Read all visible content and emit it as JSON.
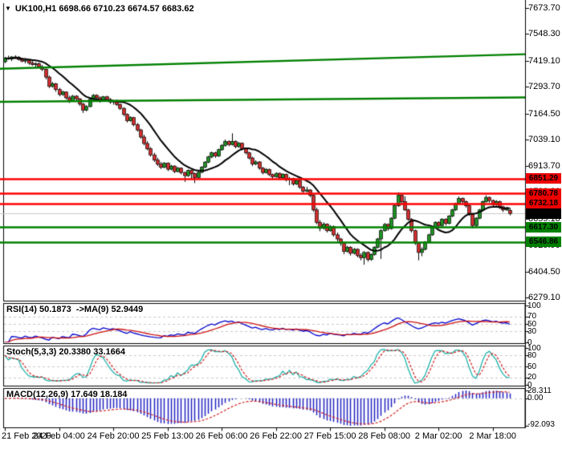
{
  "header": {
    "symbol": "UK100,H1",
    "quote": "6698.66 6710.23 6674.57 6683.62"
  },
  "colors": {
    "bull": "#1F9324",
    "bear": "#D22E2E",
    "wick": "#000000",
    "ma": "#000000",
    "resistance": "#FF0000",
    "support": "#008000",
    "trendline": "#008000",
    "current_price_line": "#C8C8C8",
    "grid": "#C8C8C8",
    "rsi_line": "#0000CC",
    "rsi_ma_line": "#CC1111",
    "stoch_k": "#20B2AA",
    "stoch_d": "#D02020",
    "macd_hist": "#2020C0",
    "macd_signal": "#D02020",
    "badge_red": "#EE0000",
    "badge_green": "#008000",
    "badge_black": "#000000"
  },
  "chart_data": {
    "type": "candlestick",
    "symbol": "UK100",
    "timeframe": "H1",
    "title": "UK100,H1 6698.66 6710.23 6674.57 6683.62",
    "current_bar": {
      "open": 6698.66,
      "high": 6710.23,
      "low": 6674.57,
      "close": 6683.62
    },
    "price_axis_ticks": [
      7673.7,
      7548.3,
      7419.1,
      7293.7,
      7164.5,
      7039.1,
      6913.7,
      6788.3,
      6659.1,
      6529.9,
      6404.5,
      6279.1
    ],
    "time_axis_labels": [
      "21 Feb 2020",
      "24 Feb 04:00",
      "24 Feb 20:00",
      "25 Feb 13:00",
      "26 Feb 06:00",
      "26 Feb 22:00",
      "27 Feb 15:00",
      "28 Feb 08:00",
      "2 Mar 02:00",
      "2 Mar 18:00"
    ],
    "levels": {
      "resistance": [
        6851.29,
        6780.78,
        6732.18
      ],
      "support": [
        6617.3,
        6546.86
      ],
      "current_price": 6683.62
    },
    "trendlines": [
      {
        "price_left": 7381,
        "price_right": 7451
      },
      {
        "price_left": 7222,
        "price_right": 7243
      }
    ],
    "candles": [
      [
        7415,
        7438,
        7408,
        7432
      ],
      [
        7432,
        7444,
        7424,
        7428
      ],
      [
        7428,
        7441,
        7418,
        7438
      ],
      [
        7438,
        7446,
        7430,
        7436
      ],
      [
        7436,
        7442,
        7421,
        7426
      ],
      [
        7426,
        7434,
        7412,
        7418
      ],
      [
        7418,
        7429,
        7407,
        7422
      ],
      [
        7422,
        7428,
        7400,
        7408
      ],
      [
        7408,
        7420,
        7396,
        7401
      ],
      [
        7401,
        7412,
        7388,
        7405
      ],
      [
        7405,
        7411,
        7385,
        7391
      ],
      [
        7391,
        7399,
        7370,
        7378
      ],
      [
        7378,
        7382,
        7330,
        7341
      ],
      [
        7341,
        7348,
        7288,
        7296
      ],
      [
        7296,
        7318,
        7290,
        7309
      ],
      [
        7309,
        7313,
        7270,
        7281
      ],
      [
        7281,
        7289,
        7248,
        7257
      ],
      [
        7257,
        7275,
        7250,
        7269
      ],
      [
        7269,
        7272,
        7233,
        7241
      ],
      [
        7241,
        7251,
        7216,
        7226
      ],
      [
        7226,
        7255,
        7222,
        7249
      ],
      [
        7249,
        7254,
        7228,
        7236
      ],
      [
        7236,
        7240,
        7202,
        7211
      ],
      [
        7211,
        7216,
        7168,
        7182
      ],
      [
        7182,
        7206,
        7176,
        7199
      ],
      [
        7199,
        7240,
        7195,
        7234
      ],
      [
        7234,
        7259,
        7230,
        7253
      ],
      [
        7253,
        7258,
        7232,
        7241
      ],
      [
        7241,
        7248,
        7218,
        7227
      ],
      [
        7227,
        7250,
        7222,
        7246
      ],
      [
        7246,
        7251,
        7226,
        7233
      ],
      [
        7233,
        7240,
        7212,
        7221
      ],
      [
        7221,
        7232,
        7208,
        7228
      ],
      [
        7228,
        7233,
        7202,
        7209
      ],
      [
        7209,
        7215,
        7182,
        7190
      ],
      [
        7190,
        7196,
        7152,
        7161
      ],
      [
        7161,
        7166,
        7122,
        7131
      ],
      [
        7131,
        7152,
        7126,
        7146
      ],
      [
        7146,
        7149,
        7104,
        7112
      ],
      [
        7112,
        7120,
        7078,
        7086
      ],
      [
        7086,
        7092,
        7044,
        7052
      ],
      [
        7052,
        7063,
        7012,
        7021
      ],
      [
        7021,
        7032,
        6988,
        6996
      ],
      [
        6996,
        7004,
        6958,
        6966
      ],
      [
        6966,
        6976,
        6932,
        6941
      ],
      [
        6941,
        6952,
        6912,
        6921
      ],
      [
        6921,
        6932,
        6898,
        6906
      ],
      [
        6906,
        6931,
        6902,
        6926
      ],
      [
        6926,
        6930,
        6888,
        6897
      ],
      [
        6897,
        6918,
        6892,
        6912
      ],
      [
        6912,
        6916,
        6878,
        6886
      ],
      [
        6886,
        6908,
        6882,
        6902
      ],
      [
        6902,
        6906,
        6872,
        6881
      ],
      [
        6881,
        6886,
        6836,
        6866
      ],
      [
        6866,
        6896,
        6860,
        6891
      ],
      [
        6891,
        6895,
        6848,
        6876
      ],
      [
        6876,
        6881,
        6830,
        6857
      ],
      [
        6857,
        6889,
        6852,
        6882
      ],
      [
        6882,
        6912,
        6878,
        6907
      ],
      [
        6907,
        6936,
        6902,
        6931
      ],
      [
        6931,
        6962,
        6926,
        6956
      ],
      [
        6956,
        6982,
        6950,
        6976
      ],
      [
        6976,
        6981,
        6952,
        6961
      ],
      [
        6961,
        6996,
        6956,
        6991
      ],
      [
        6991,
        7018,
        6986,
        7012
      ],
      [
        7012,
        7040,
        7006,
        7031
      ],
      [
        7031,
        7036,
        7008,
        7016
      ],
      [
        7016,
        7070,
        7011,
        7031
      ],
      [
        7031,
        7036,
        6998,
        7006
      ],
      [
        7006,
        7028,
        7000,
        7022
      ],
      [
        7022,
        7026,
        6988,
        6996
      ],
      [
        6996,
        7001,
        6968,
        6976
      ],
      [
        6976,
        6981,
        6944,
        6951
      ],
      [
        6951,
        6957,
        6912,
        6922
      ],
      [
        6922,
        6940,
        6916,
        6932
      ],
      [
        6932,
        6936,
        6894,
        6902
      ],
      [
        6902,
        6908,
        6872,
        6881
      ],
      [
        6881,
        6902,
        6876,
        6896
      ],
      [
        6896,
        6900,
        6864,
        6871
      ],
      [
        6871,
        6876,
        6852,
        6861
      ],
      [
        6861,
        6882,
        6856,
        6877
      ],
      [
        6877,
        6881,
        6846,
        6856
      ],
      [
        6856,
        6877,
        6851,
        6872
      ],
      [
        6872,
        6876,
        6838,
        6846
      ],
      [
        6846,
        6860,
        6820,
        6852
      ],
      [
        6852,
        6856,
        6818,
        6826
      ],
      [
        6826,
        6848,
        6821,
        6842
      ],
      [
        6842,
        6846,
        6802,
        6811
      ],
      [
        6811,
        6816,
        6782,
        6791
      ],
      [
        6791,
        6812,
        6786,
        6797
      ],
      [
        6797,
        6801,
        6762,
        6771
      ],
      [
        6771,
        6776,
        6692,
        6701
      ],
      [
        6701,
        6712,
        6632,
        6641
      ],
      [
        6641,
        6652,
        6598,
        6612
      ],
      [
        6612,
        6641,
        6606,
        6632
      ],
      [
        6632,
        6636,
        6592,
        6601
      ],
      [
        6601,
        6628,
        6596,
        6621
      ],
      [
        6621,
        6626,
        6572,
        6581
      ],
      [
        6581,
        6592,
        6548,
        6561
      ],
      [
        6561,
        6566,
        6528,
        6541
      ],
      [
        6541,
        6547,
        6488,
        6501
      ],
      [
        6501,
        6528,
        6496,
        6521
      ],
      [
        6521,
        6526,
        6481,
        6492
      ],
      [
        6492,
        6518,
        6486,
        6511
      ],
      [
        6511,
        6516,
        6472,
        6481
      ],
      [
        6481,
        6492,
        6458,
        6471
      ],
      [
        6471,
        6502,
        6437,
        6496
      ],
      [
        6496,
        6501,
        6452,
        6462
      ],
      [
        6462,
        6491,
        6456,
        6486
      ],
      [
        6486,
        6526,
        6481,
        6521
      ],
      [
        6521,
        6566,
        6516,
        6561
      ],
      [
        6561,
        6608,
        6465,
        6601
      ],
      [
        6601,
        6638,
        6596,
        6631
      ],
      [
        6631,
        6636,
        6601,
        6611
      ],
      [
        6611,
        6666,
        6606,
        6661
      ],
      [
        6661,
        6726,
        6656,
        6721
      ],
      [
        6721,
        6786,
        6716,
        6771
      ],
      [
        6771,
        6776,
        6732,
        6741
      ],
      [
        6741,
        6766,
        6696,
        6701
      ],
      [
        6701,
        6706,
        6648,
        6656
      ],
      [
        6656,
        6661,
        6592,
        6601
      ],
      [
        6601,
        6606,
        6532,
        6541
      ],
      [
        6541,
        6546,
        6458,
        6496
      ],
      [
        6496,
        6521,
        6478,
        6511
      ],
      [
        6511,
        6551,
        6506,
        6546
      ],
      [
        6546,
        6586,
        6541,
        6581
      ],
      [
        6581,
        6621,
        6576,
        6616
      ],
      [
        6616,
        6646,
        6611,
        6641
      ],
      [
        6641,
        6646,
        6612,
        6626
      ],
      [
        6626,
        6661,
        6621,
        6656
      ],
      [
        6656,
        6661,
        6626,
        6636
      ],
      [
        6636,
        6676,
        6631,
        6671
      ],
      [
        6671,
        6706,
        6666,
        6701
      ],
      [
        6701,
        6736,
        6696,
        6731
      ],
      [
        6731,
        6766,
        6726,
        6756
      ],
      [
        6756,
        6761,
        6731,
        6741
      ],
      [
        6741,
        6746,
        6712,
        6721
      ],
      [
        6721,
        6726,
        6672,
        6681
      ],
      [
        6681,
        6686,
        6612,
        6626
      ],
      [
        6626,
        6666,
        6621,
        6661
      ],
      [
        6661,
        6706,
        6656,
        6701
      ],
      [
        6701,
        6746,
        6696,
        6741
      ],
      [
        6741,
        6771,
        6736,
        6761
      ],
      [
        6761,
        6766,
        6736,
        6746
      ],
      [
        6746,
        6751,
        6716,
        6726
      ],
      [
        6726,
        6748,
        6721,
        6741
      ],
      [
        6741,
        6746,
        6706,
        6716
      ],
      [
        6716,
        6721,
        6691,
        6701
      ],
      [
        6701,
        6716,
        6696,
        6711
      ],
      [
        6698.66,
        6710.23,
        6674.57,
        6683.62
      ]
    ],
    "indicators": {
      "rsi": {
        "label": "RSI(14) 50.1873  ->MA(9) 52.9449",
        "period": 14,
        "ma_period": 9,
        "value": 50.1873,
        "ma_value": 52.9449,
        "axis_ticks": [
          100,
          70,
          50,
          30,
          0
        ],
        "grid_levels": [
          70,
          50,
          30
        ]
      },
      "stoch": {
        "label": "Stoch(5,3,3) 20.3380 33.1664",
        "k_period": 5,
        "d_period": 3,
        "slowing": 3,
        "value_k": 20.338,
        "value_d": 33.1664,
        "axis_ticks": [
          100,
          80,
          50,
          20,
          0
        ],
        "grid_levels": [
          80,
          50,
          20
        ]
      },
      "macd": {
        "label": "MACD(12,26,9) 17.649 18.184",
        "fast": 12,
        "slow": 26,
        "signal": 9,
        "value": 17.649,
        "signal_value": 18.184,
        "axis_tick_labels": [
          "28.311",
          "0.00",
          "-92.093"
        ]
      }
    }
  }
}
